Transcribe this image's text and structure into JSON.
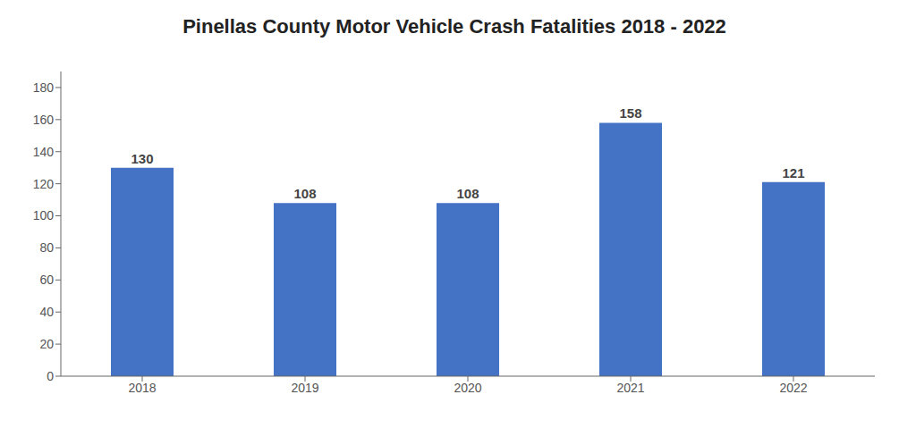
{
  "chart_data": {
    "type": "bar",
    "title": "Pinellas County Motor Vehicle Crash Fatalities 2018 - 2022",
    "categories": [
      "2018",
      "2019",
      "2020",
      "2021",
      "2022"
    ],
    "values": [
      130,
      108,
      108,
      158,
      121
    ],
    "color": "#4472C4",
    "ylim": [
      0,
      190
    ],
    "yticks": [
      0,
      20,
      40,
      60,
      80,
      100,
      120,
      140,
      160,
      180
    ],
    "grid": false,
    "data_labels": true
  }
}
